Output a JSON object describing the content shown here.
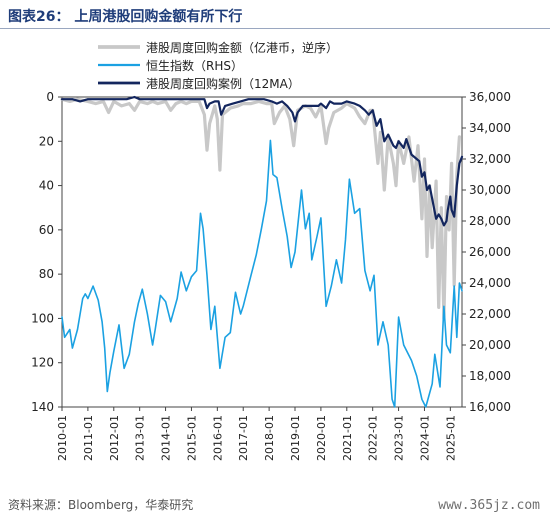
{
  "title": "图表26： 上周港股回购金额有所下行",
  "source": "资料来源：Bloomberg，华泰研究",
  "watermark": "www.365jz.com",
  "colors": {
    "gray": "#c8c8c8",
    "light_blue": "#1ba1e2",
    "dark_blue": "#13265e"
  },
  "chart_data": {
    "type": "line",
    "legend_placement": "top-left",
    "grid": false,
    "x_ticks": [
      "2010-01",
      "2011-01",
      "2012-01",
      "2013-01",
      "2014-01",
      "2015-01",
      "2016-01",
      "2017-01",
      "2018-01",
      "2019-01",
      "2020-01",
      "2021-01",
      "2022-01",
      "2023-01",
      "2024-01",
      "2025-01"
    ],
    "x_range": [
      2010.0,
      2025.45
    ],
    "y_left": {
      "ticks": [
        "0",
        "20",
        "40",
        "60",
        "80",
        "100",
        "120",
        "140"
      ],
      "range": [
        0,
        140
      ],
      "inverted": true
    },
    "y_right": {
      "ticks": [
        "16,000",
        "18,000",
        "20,000",
        "22,000",
        "24,000",
        "26,000",
        "28,000",
        "30,000",
        "32,000",
        "34,000",
        "36,000"
      ],
      "range": [
        16000,
        36000
      ]
    },
    "series": [
      {
        "name": "港股周度回购金额（亿港币，逆序）",
        "axis": "left",
        "color": "#c8c8c8",
        "points": [
          [
            2010.0,
            1
          ],
          [
            2010.3,
            2
          ],
          [
            2010.6,
            1
          ],
          [
            2011.0,
            2
          ],
          [
            2011.3,
            3
          ],
          [
            2011.6,
            2
          ],
          [
            2011.8,
            7
          ],
          [
            2012.0,
            2
          ],
          [
            2012.3,
            4
          ],
          [
            2012.6,
            3
          ],
          [
            2012.8,
            6
          ],
          [
            2013.0,
            2
          ],
          [
            2013.3,
            3
          ],
          [
            2013.5,
            2
          ],
          [
            2013.7,
            3
          ],
          [
            2014.0,
            2
          ],
          [
            2014.2,
            6
          ],
          [
            2014.4,
            3
          ],
          [
            2014.6,
            2
          ],
          [
            2014.8,
            3
          ],
          [
            2015.0,
            2
          ],
          [
            2015.3,
            2
          ],
          [
            2015.5,
            8
          ],
          [
            2015.6,
            24
          ],
          [
            2015.7,
            12
          ],
          [
            2015.9,
            4
          ],
          [
            2016.0,
            10
          ],
          [
            2016.1,
            33
          ],
          [
            2016.2,
            8
          ],
          [
            2016.5,
            5
          ],
          [
            2016.8,
            4
          ],
          [
            2017.0,
            3
          ],
          [
            2017.3,
            3
          ],
          [
            2017.6,
            2
          ],
          [
            2017.9,
            3
          ],
          [
            2018.1,
            3
          ],
          [
            2018.2,
            12
          ],
          [
            2018.4,
            7
          ],
          [
            2018.6,
            4
          ],
          [
            2018.8,
            10
          ],
          [
            2018.95,
            22
          ],
          [
            2019.1,
            6
          ],
          [
            2019.4,
            4
          ],
          [
            2019.6,
            5
          ],
          [
            2019.8,
            9
          ],
          [
            2020.0,
            4
          ],
          [
            2020.2,
            21
          ],
          [
            2020.3,
            14
          ],
          [
            2020.5,
            7
          ],
          [
            2020.8,
            5
          ],
          [
            2021.0,
            3
          ],
          [
            2021.3,
            5
          ],
          [
            2021.5,
            9
          ],
          [
            2021.7,
            12
          ],
          [
            2021.9,
            6
          ],
          [
            2022.0,
            6
          ],
          [
            2022.2,
            30
          ],
          [
            2022.3,
            16
          ],
          [
            2022.45,
            42
          ],
          [
            2022.6,
            18
          ],
          [
            2022.8,
            30
          ],
          [
            2022.9,
            40
          ],
          [
            2023.0,
            20
          ],
          [
            2023.2,
            30
          ],
          [
            2023.4,
            18
          ],
          [
            2023.6,
            38
          ],
          [
            2023.75,
            22
          ],
          [
            2023.9,
            55
          ],
          [
            2024.0,
            28
          ],
          [
            2024.1,
            72
          ],
          [
            2024.2,
            40
          ],
          [
            2024.3,
            68
          ],
          [
            2024.45,
            38
          ],
          [
            2024.55,
            95
          ],
          [
            2024.65,
            50
          ],
          [
            2024.75,
            100
          ],
          [
            2024.85,
            45
          ],
          [
            2024.95,
            60
          ],
          [
            2025.05,
            30
          ],
          [
            2025.15,
            85
          ],
          [
            2025.25,
            35
          ],
          [
            2025.35,
            18
          ]
        ]
      },
      {
        "name": "恒生指数（RHS）",
        "axis": "right",
        "color": "#1ba1e2",
        "points": [
          [
            2010.0,
            21800
          ],
          [
            2010.1,
            20500
          ],
          [
            2010.3,
            21000
          ],
          [
            2010.4,
            19800
          ],
          [
            2010.6,
            21000
          ],
          [
            2010.8,
            23000
          ],
          [
            2010.9,
            23300
          ],
          [
            2011.0,
            23000
          ],
          [
            2011.2,
            23800
          ],
          [
            2011.4,
            22900
          ],
          [
            2011.55,
            21500
          ],
          [
            2011.65,
            19800
          ],
          [
            2011.75,
            17000
          ],
          [
            2011.85,
            18200
          ],
          [
            2012.0,
            19600
          ],
          [
            2012.2,
            21300
          ],
          [
            2012.4,
            18500
          ],
          [
            2012.6,
            19400
          ],
          [
            2012.8,
            21500
          ],
          [
            2012.95,
            22700
          ],
          [
            2013.1,
            23600
          ],
          [
            2013.3,
            22000
          ],
          [
            2013.5,
            20000
          ],
          [
            2013.6,
            21000
          ],
          [
            2013.8,
            23200
          ],
          [
            2014.0,
            22800
          ],
          [
            2014.2,
            21500
          ],
          [
            2014.45,
            23000
          ],
          [
            2014.6,
            24700
          ],
          [
            2014.8,
            23500
          ],
          [
            2015.0,
            24400
          ],
          [
            2015.2,
            24800
          ],
          [
            2015.35,
            28500
          ],
          [
            2015.45,
            27500
          ],
          [
            2015.6,
            24500
          ],
          [
            2015.75,
            21000
          ],
          [
            2015.9,
            22500
          ],
          [
            2016.1,
            18500
          ],
          [
            2016.3,
            20500
          ],
          [
            2016.5,
            20800
          ],
          [
            2016.7,
            23400
          ],
          [
            2016.9,
            22000
          ],
          [
            2017.0,
            22500
          ],
          [
            2017.3,
            24500
          ],
          [
            2017.5,
            25800
          ],
          [
            2017.7,
            27500
          ],
          [
            2017.9,
            29300
          ],
          [
            2018.05,
            33200
          ],
          [
            2018.15,
            31000
          ],
          [
            2018.3,
            30800
          ],
          [
            2018.5,
            28800
          ],
          [
            2018.7,
            27000
          ],
          [
            2018.85,
            25000
          ],
          [
            2019.0,
            26000
          ],
          [
            2019.25,
            30000
          ],
          [
            2019.4,
            27500
          ],
          [
            2019.55,
            28500
          ],
          [
            2019.65,
            25500
          ],
          [
            2019.85,
            27000
          ],
          [
            2020.0,
            28200
          ],
          [
            2020.2,
            22500
          ],
          [
            2020.4,
            23800
          ],
          [
            2020.6,
            25500
          ],
          [
            2020.8,
            24000
          ],
          [
            2020.95,
            26800
          ],
          [
            2021.1,
            30700
          ],
          [
            2021.3,
            28500
          ],
          [
            2021.5,
            28800
          ],
          [
            2021.7,
            24800
          ],
          [
            2021.9,
            23500
          ],
          [
            2022.05,
            24500
          ],
          [
            2022.2,
            20000
          ],
          [
            2022.4,
            21500
          ],
          [
            2022.6,
            20000
          ],
          [
            2022.75,
            16500
          ],
          [
            2022.85,
            16000
          ],
          [
            2023.0,
            21800
          ],
          [
            2023.2,
            20000
          ],
          [
            2023.5,
            19000
          ],
          [
            2023.7,
            18000
          ],
          [
            2023.9,
            16500
          ],
          [
            2024.05,
            16000
          ],
          [
            2024.3,
            17500
          ],
          [
            2024.4,
            19400
          ],
          [
            2024.6,
            17300
          ],
          [
            2024.75,
            22500
          ],
          [
            2024.85,
            20000
          ],
          [
            2025.0,
            19500
          ],
          [
            2025.15,
            23800
          ],
          [
            2025.25,
            20500
          ],
          [
            2025.35,
            24000
          ],
          [
            2025.45,
            23500
          ]
        ]
      },
      {
        "name": "港股周度回购案例（12MA）",
        "axis": "left",
        "color": "#13265e",
        "points": [
          [
            2010.0,
            1
          ],
          [
            2010.4,
            1
          ],
          [
            2010.7,
            2
          ],
          [
            2011.0,
            1
          ],
          [
            2011.5,
            1
          ],
          [
            2011.8,
            1
          ],
          [
            2012.0,
            1
          ],
          [
            2012.5,
            1
          ],
          [
            2012.8,
            0
          ],
          [
            2013.0,
            1
          ],
          [
            2013.5,
            1
          ],
          [
            2014.0,
            1
          ],
          [
            2014.5,
            1
          ],
          [
            2014.8,
            1
          ],
          [
            2015.0,
            1
          ],
          [
            2015.3,
            1
          ],
          [
            2015.5,
            1
          ],
          [
            2015.6,
            5
          ],
          [
            2015.7,
            3
          ],
          [
            2015.9,
            2
          ],
          [
            2016.05,
            2
          ],
          [
            2016.15,
            8
          ],
          [
            2016.3,
            4
          ],
          [
            2016.6,
            3
          ],
          [
            2016.9,
            2
          ],
          [
            2017.2,
            1
          ],
          [
            2017.5,
            1
          ],
          [
            2017.8,
            1
          ],
          [
            2018.1,
            2
          ],
          [
            2018.3,
            3
          ],
          [
            2018.5,
            2
          ],
          [
            2018.7,
            4
          ],
          [
            2018.9,
            7
          ],
          [
            2019.0,
            11
          ],
          [
            2019.1,
            7
          ],
          [
            2019.3,
            4
          ],
          [
            2019.5,
            4
          ],
          [
            2019.7,
            4
          ],
          [
            2019.9,
            4
          ],
          [
            2020.0,
            3
          ],
          [
            2020.2,
            5
          ],
          [
            2020.35,
            2
          ],
          [
            2020.5,
            3
          ],
          [
            2020.8,
            3
          ],
          [
            2021.0,
            2
          ],
          [
            2021.3,
            3
          ],
          [
            2021.5,
            4
          ],
          [
            2021.7,
            6
          ],
          [
            2021.85,
            8
          ],
          [
            2022.0,
            6
          ],
          [
            2022.15,
            13
          ],
          [
            2022.3,
            10
          ],
          [
            2022.45,
            20
          ],
          [
            2022.6,
            17
          ],
          [
            2022.8,
            22
          ],
          [
            2022.9,
            23
          ],
          [
            2023.0,
            20
          ],
          [
            2023.2,
            23
          ],
          [
            2023.3,
            19
          ],
          [
            2023.5,
            26
          ],
          [
            2023.7,
            28
          ],
          [
            2023.8,
            29
          ],
          [
            2023.9,
            36
          ],
          [
            2024.0,
            34
          ],
          [
            2024.1,
            42
          ],
          [
            2024.2,
            40
          ],
          [
            2024.3,
            46
          ],
          [
            2024.45,
            55
          ],
          [
            2024.55,
            53
          ],
          [
            2024.65,
            55
          ],
          [
            2024.75,
            58
          ],
          [
            2024.85,
            56
          ],
          [
            2024.9,
            51
          ],
          [
            2025.0,
            45
          ],
          [
            2025.05,
            51
          ],
          [
            2025.15,
            54
          ],
          [
            2025.25,
            40
          ],
          [
            2025.35,
            30
          ],
          [
            2025.45,
            27
          ]
        ]
      }
    ]
  }
}
